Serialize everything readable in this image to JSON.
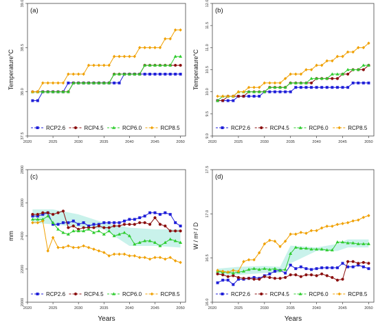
{
  "figure": {
    "legend_names": [
      "RCP2.6",
      "RCP4.5",
      "RCP6.0",
      "RCP8.5"
    ],
    "colors": {
      "RCP2.6": "#1f1fd8",
      "RCP4.5": "#8b0f0f",
      "RCP6.0": "#2ecc2e",
      "RCP8.5": "#f0a000",
      "band": "#bff0e8"
    }
  },
  "chart_data": [
    {
      "type": "line",
      "panel_label": "(a)",
      "title": "",
      "xlabel": "",
      "ylabel": "Temperature°C",
      "xlim": [
        2020,
        2051
      ],
      "ylim": [
        37.5,
        39.0
      ],
      "xticks": [
        2020,
        2025,
        2030,
        2035,
        2040,
        2045,
        2050
      ],
      "yticks": [
        37.5,
        38.0,
        38.5,
        39.0
      ],
      "legend": "bottom",
      "grid": false,
      "x": [
        2021,
        2022,
        2023,
        2024,
        2025,
        2026,
        2027,
        2028,
        2029,
        2030,
        2031,
        2032,
        2033,
        2034,
        2035,
        2036,
        2037,
        2038,
        2039,
        2040,
        2041,
        2042,
        2043,
        2044,
        2045,
        2046,
        2047,
        2048,
        2049,
        2050
      ],
      "series": [
        {
          "name": "RCP2.6",
          "values": [
            37.9,
            37.9,
            38.0,
            38.0,
            38.0,
            38.0,
            38.0,
            38.1,
            38.1,
            38.1,
            38.1,
            38.1,
            38.1,
            38.1,
            38.1,
            38.1,
            38.1,
            38.1,
            38.2,
            38.2,
            38.2,
            38.2,
            38.2,
            38.2,
            38.2,
            38.2,
            38.2,
            38.2,
            38.2,
            38.2
          ]
        },
        {
          "name": "RCP4.5",
          "values": [
            38.0,
            38.0,
            38.0,
            38.0,
            38.0,
            38.0,
            38.0,
            38.0,
            38.1,
            38.1,
            38.1,
            38.1,
            38.1,
            38.1,
            38.1,
            38.1,
            38.2,
            38.2,
            38.2,
            38.2,
            38.2,
            38.2,
            38.3,
            38.3,
            38.3,
            38.3,
            38.3,
            38.3,
            38.3,
            38.3
          ]
        },
        {
          "name": "RCP6.0",
          "values": [
            38.0,
            38.0,
            38.0,
            38.0,
            38.0,
            38.0,
            38.0,
            38.0,
            38.1,
            38.1,
            38.1,
            38.1,
            38.1,
            38.1,
            38.1,
            38.1,
            38.2,
            38.2,
            38.2,
            38.2,
            38.2,
            38.2,
            38.3,
            38.3,
            38.3,
            38.3,
            38.3,
            38.3,
            38.4,
            38.4
          ]
        },
        {
          "name": "RCP8.5",
          "values": [
            38.0,
            38.0,
            38.1,
            38.1,
            38.1,
            38.1,
            38.1,
            38.2,
            38.2,
            38.2,
            38.2,
            38.3,
            38.3,
            38.3,
            38.3,
            38.3,
            38.4,
            38.4,
            38.4,
            38.4,
            38.4,
            38.5,
            38.5,
            38.5,
            38.5,
            38.5,
            38.6,
            38.6,
            38.7,
            38.7
          ]
        }
      ]
    },
    {
      "type": "line",
      "panel_label": "(b)",
      "title": "",
      "xlabel": "",
      "ylabel": "Temperature°C",
      "xlim": [
        2020,
        2051
      ],
      "ylim": [
        9.0,
        12.0
      ],
      "xticks": [
        2020,
        2025,
        2030,
        2035,
        2040,
        2045,
        2050
      ],
      "yticks": [
        9.0,
        9.5,
        10.0,
        10.5,
        11.0,
        11.5,
        12.0
      ],
      "legend": "bottom",
      "grid": false,
      "x": [
        2021,
        2022,
        2023,
        2024,
        2025,
        2026,
        2027,
        2028,
        2029,
        2030,
        2031,
        2032,
        2033,
        2034,
        2035,
        2036,
        2037,
        2038,
        2039,
        2040,
        2041,
        2042,
        2043,
        2044,
        2045,
        2046,
        2047,
        2048,
        2049,
        2050
      ],
      "series": [
        {
          "name": "RCP2.6",
          "values": [
            9.8,
            9.8,
            9.8,
            9.8,
            9.9,
            9.9,
            9.9,
            9.9,
            9.9,
            10.0,
            10.0,
            10.0,
            10.0,
            10.0,
            10.0,
            10.1,
            10.1,
            10.1,
            10.1,
            10.1,
            10.1,
            10.1,
            10.1,
            10.1,
            10.1,
            10.1,
            10.2,
            10.2,
            10.2,
            10.2
          ]
        },
        {
          "name": "RCP4.5",
          "values": [
            9.8,
            9.8,
            9.9,
            9.9,
            9.9,
            9.9,
            10.0,
            10.0,
            10.0,
            10.0,
            10.1,
            10.1,
            10.1,
            10.1,
            10.2,
            10.2,
            10.2,
            10.2,
            10.2,
            10.3,
            10.3,
            10.3,
            10.3,
            10.3,
            10.4,
            10.4,
            10.5,
            10.5,
            10.5,
            10.6
          ]
        },
        {
          "name": "RCP6.0",
          "values": [
            9.8,
            9.9,
            9.9,
            9.9,
            10.0,
            10.0,
            10.0,
            10.0,
            10.0,
            10.0,
            10.1,
            10.1,
            10.1,
            10.1,
            10.2,
            10.2,
            10.2,
            10.2,
            10.3,
            10.3,
            10.3,
            10.3,
            10.4,
            10.4,
            10.4,
            10.5,
            10.5,
            10.5,
            10.6,
            10.6
          ]
        },
        {
          "name": "RCP8.5",
          "values": [
            9.9,
            9.9,
            9.9,
            9.9,
            10.0,
            10.0,
            10.1,
            10.1,
            10.1,
            10.2,
            10.2,
            10.2,
            10.2,
            10.3,
            10.4,
            10.4,
            10.4,
            10.5,
            10.5,
            10.6,
            10.6,
            10.7,
            10.7,
            10.8,
            10.8,
            10.9,
            10.9,
            11.0,
            11.0,
            11.1
          ]
        }
      ]
    },
    {
      "type": "line",
      "panel_label": "(c)",
      "title": "",
      "xlabel": "Years",
      "ylabel": "mm",
      "xlim": [
        2020,
        2051
      ],
      "ylim": [
        2000,
        2800
      ],
      "xticks": [
        2020,
        2025,
        2030,
        2035,
        2040,
        2045,
        2050
      ],
      "yticks": [
        2000,
        2200,
        2400,
        2600,
        2800
      ],
      "legend": "bottom",
      "grid": false,
      "band": {
        "x": [
          2021,
          2025,
          2030,
          2035,
          2040,
          2045,
          2050
        ],
        "lower": [
          2480,
          2470,
          2455,
          2440,
          2340,
          2340,
          2330
        ],
        "upper": [
          2560,
          2560,
          2530,
          2480,
          2450,
          2440,
          2440
        ]
      },
      "x": [
        2021,
        2022,
        2023,
        2024,
        2025,
        2026,
        2027,
        2028,
        2029,
        2030,
        2031,
        2032,
        2033,
        2034,
        2035,
        2036,
        2037,
        2038,
        2039,
        2040,
        2041,
        2042,
        2043,
        2044,
        2045,
        2046,
        2047,
        2048,
        2049,
        2050
      ],
      "series": [
        {
          "name": "RCP2.6",
          "values": [
            2520,
            2520,
            2530,
            2540,
            2470,
            2470,
            2480,
            2480,
            2490,
            2470,
            2480,
            2460,
            2470,
            2470,
            2480,
            2480,
            2480,
            2480,
            2490,
            2500,
            2500,
            2510,
            2520,
            2540,
            2540,
            2530,
            2540,
            2530,
            2480,
            2460
          ]
        },
        {
          "name": "RCP4.5",
          "values": [
            2530,
            2530,
            2540,
            2540,
            2530,
            2540,
            2550,
            2450,
            2460,
            2440,
            2450,
            2450,
            2450,
            2460,
            2450,
            2450,
            2460,
            2460,
            2470,
            2470,
            2470,
            2480,
            2480,
            2470,
            2510,
            2470,
            2460,
            2430,
            2430,
            2430
          ]
        },
        {
          "name": "RCP6.0",
          "values": [
            2500,
            2500,
            2500,
            2520,
            2480,
            2440,
            2420,
            2410,
            2430,
            2430,
            2430,
            2440,
            2420,
            2430,
            2410,
            2430,
            2400,
            2410,
            2420,
            2400,
            2350,
            2360,
            2370,
            2370,
            2360,
            2340,
            2360,
            2380,
            2370,
            2360
          ]
        },
        {
          "name": "RCP8.5",
          "values": [
            2480,
            2480,
            2490,
            2310,
            2390,
            2330,
            2330,
            2340,
            2330,
            2330,
            2340,
            2330,
            2320,
            2310,
            2300,
            2280,
            2290,
            2290,
            2290,
            2280,
            2280,
            2270,
            2270,
            2260,
            2270,
            2270,
            2260,
            2270,
            2250,
            2240
          ]
        }
      ]
    },
    {
      "type": "line",
      "panel_label": "(d)",
      "title": "",
      "xlabel": "Years",
      "ylabel": "W / m² / D",
      "xlim": [
        2020,
        2051
      ],
      "ylim": [
        16.0,
        17.5
      ],
      "xticks": [
        2020,
        2025,
        2030,
        2035,
        2040,
        2045,
        2050
      ],
      "yticks": [
        16.0,
        16.5,
        17.0,
        17.5
      ],
      "legend": "bottom",
      "grid": false,
      "band": {
        "x": [
          2021,
          2025,
          2030,
          2033,
          2035,
          2040,
          2044,
          2046,
          2050
        ],
        "lower": [
          16.31,
          16.31,
          16.33,
          16.33,
          16.44,
          16.58,
          16.58,
          16.62,
          16.62
        ],
        "upper": [
          16.38,
          16.4,
          16.41,
          16.4,
          16.64,
          16.62,
          16.66,
          16.71,
          16.71
        ]
      },
      "x": [
        2021,
        2022,
        2023,
        2024,
        2025,
        2026,
        2027,
        2028,
        2029,
        2030,
        2031,
        2032,
        2033,
        2034,
        2035,
        2036,
        2037,
        2038,
        2039,
        2040,
        2041,
        2042,
        2043,
        2044,
        2045,
        2046,
        2047,
        2048,
        2049,
        2050
      ],
      "series": [
        {
          "name": "RCP2.6",
          "values": [
            16.22,
            16.25,
            16.25,
            16.2,
            16.26,
            16.26,
            16.27,
            16.28,
            16.27,
            16.3,
            16.32,
            16.35,
            16.36,
            16.33,
            16.42,
            16.38,
            16.4,
            16.38,
            16.37,
            16.38,
            16.39,
            16.39,
            16.39,
            16.39,
            16.44,
            16.4,
            16.4,
            16.42,
            16.4,
            16.38
          ]
        },
        {
          "name": "RCP4.5",
          "values": [
            16.32,
            16.31,
            16.29,
            16.3,
            16.28,
            16.27,
            16.27,
            16.26,
            16.26,
            16.29,
            16.28,
            16.27,
            16.27,
            16.28,
            16.31,
            16.31,
            16.29,
            16.31,
            16.31,
            16.3,
            16.32,
            16.3,
            16.28,
            16.25,
            16.26,
            16.46,
            16.46,
            16.44,
            16.45,
            16.44
          ]
        },
        {
          "name": "RCP6.0",
          "values": [
            16.35,
            16.34,
            16.34,
            16.33,
            16.34,
            16.35,
            16.37,
            16.38,
            16.37,
            16.38,
            16.37,
            16.38,
            16.36,
            16.37,
            16.55,
            16.62,
            16.61,
            16.61,
            16.6,
            16.6,
            16.6,
            16.59,
            16.59,
            16.68,
            16.68,
            16.67,
            16.67,
            16.66,
            16.66,
            16.66
          ]
        },
        {
          "name": "RCP8.5",
          "values": [
            16.36,
            16.35,
            16.34,
            16.36,
            16.35,
            16.46,
            16.48,
            16.48,
            16.56,
            16.66,
            16.7,
            16.69,
            16.63,
            16.69,
            16.77,
            16.77,
            16.79,
            16.78,
            16.81,
            16.81,
            16.84,
            16.86,
            16.86,
            16.88,
            16.89,
            16.9,
            16.92,
            16.93,
            16.96,
            16.98
          ]
        }
      ]
    }
  ]
}
